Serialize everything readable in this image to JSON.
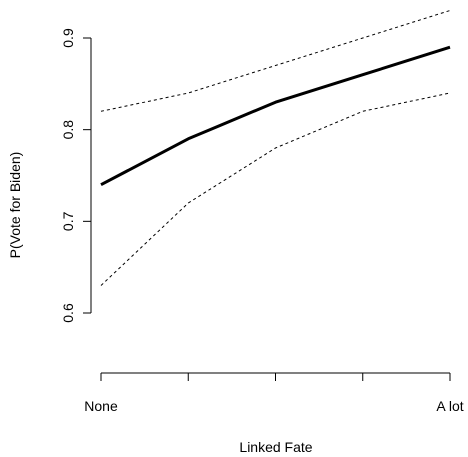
{
  "chart_data": {
    "type": "line",
    "xlabel": "Linked Fate",
    "ylabel": "P(Vote for Biden)",
    "x_positions": [
      0,
      1,
      2,
      3,
      4
    ],
    "x_tick_labels": [
      "None",
      "",
      "",
      "",
      "A lot"
    ],
    "ylim": [
      0.6,
      0.9
    ],
    "y_ticks": [
      0.6,
      0.7,
      0.8,
      0.9
    ],
    "y_tick_labels": [
      "0.6",
      "0.7",
      "0.8",
      "0.9"
    ],
    "grid": false,
    "series": [
      {
        "role": "estimate",
        "style": "solid",
        "values": [
          0.74,
          0.79,
          0.83,
          0.86,
          0.89
        ]
      },
      {
        "role": "upper",
        "style": "dashed",
        "values": [
          0.82,
          0.84,
          0.87,
          0.9,
          0.93
        ]
      },
      {
        "role": "lower",
        "style": "dashed",
        "values": [
          0.63,
          0.72,
          0.78,
          0.82,
          0.84
        ]
      }
    ]
  }
}
